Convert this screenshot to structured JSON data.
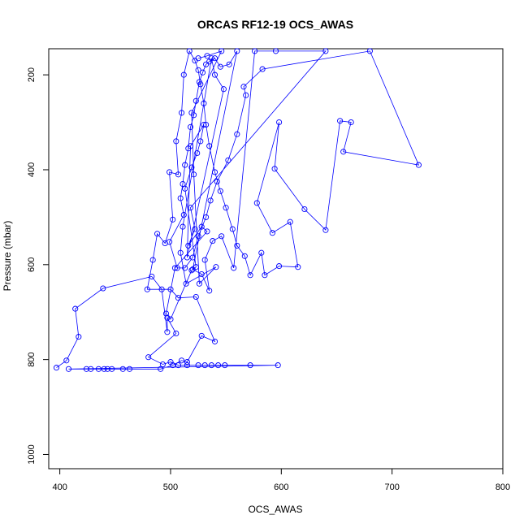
{
  "chart_data": {
    "type": "scatter",
    "title": "ORCAS RF12-19 OCS_AWAS",
    "xlabel": "OCS_AWAS",
    "ylabel": "Pressure (mbar)",
    "xlim": [
      390,
      800
    ],
    "ylim": [
      1030,
      145
    ],
    "y_reversed": true,
    "x_ticks": [
      400,
      500,
      600,
      700,
      800
    ],
    "y_ticks": [
      200,
      400,
      600,
      800,
      1000
    ],
    "grid": false,
    "legend": "none",
    "style": {
      "color": "#0000ff",
      "marker": "open-circle",
      "connect": "lines"
    },
    "series": [
      {
        "values": [
          [
            397,
            817
          ],
          [
            406,
            802
          ],
          [
            417,
            752
          ],
          [
            414,
            693
          ],
          [
            439,
            650
          ],
          [
            483,
            625
          ],
          [
            492,
            652
          ],
          [
            497,
            742
          ],
          [
            497,
            712
          ],
          [
            505,
            745
          ],
          [
            480,
            795
          ],
          [
            493,
            810
          ],
          [
            500,
            805
          ],
          [
            507,
            812
          ],
          [
            515,
            812
          ],
          [
            525,
            812
          ],
          [
            531,
            812
          ],
          [
            537,
            812
          ],
          [
            543,
            812
          ],
          [
            549,
            812
          ],
          [
            572,
            812
          ],
          [
            597,
            812
          ],
          [
            408,
            820
          ],
          [
            424,
            820
          ],
          [
            428,
            820
          ],
          [
            435,
            820
          ],
          [
            440,
            820
          ],
          [
            443,
            820
          ],
          [
            447,
            820
          ],
          [
            457,
            820
          ],
          [
            463,
            820
          ],
          [
            491,
            820
          ],
          [
            502,
            812
          ],
          [
            510,
            802
          ],
          [
            515,
            805
          ],
          [
            528,
            750
          ],
          [
            540,
            762
          ],
          [
            523,
            668
          ],
          [
            507,
            670
          ],
          [
            500,
            652
          ],
          [
            479,
            652
          ],
          [
            484,
            590
          ],
          [
            488,
            535
          ],
          [
            495,
            555
          ],
          [
            502,
            505
          ],
          [
            499,
            405
          ],
          [
            507,
            410
          ],
          [
            505,
            340
          ],
          [
            510,
            280
          ],
          [
            512,
            200
          ],
          [
            517,
            150
          ],
          [
            522,
            170
          ],
          [
            525,
            190
          ],
          [
            527,
            220
          ],
          [
            530,
            260
          ],
          [
            532,
            305
          ],
          [
            535,
            350
          ],
          [
            540,
            405
          ],
          [
            545,
            445
          ],
          [
            550,
            480
          ],
          [
            556,
            525
          ],
          [
            560,
            560
          ],
          [
            567,
            582
          ],
          [
            572,
            622
          ],
          [
            582,
            575
          ],
          [
            585,
            622
          ],
          [
            598,
            603
          ],
          [
            615,
            605
          ],
          [
            608,
            510
          ],
          [
            592,
            533
          ],
          [
            578,
            470
          ],
          [
            598,
            300
          ],
          [
            594,
            398
          ],
          [
            621,
            483
          ],
          [
            640,
            527
          ],
          [
            653,
            297
          ],
          [
            663,
            300
          ],
          [
            656,
            362
          ],
          [
            724,
            390
          ],
          [
            680,
            150
          ],
          [
            583,
            188
          ],
          [
            566,
            225
          ],
          [
            568,
            243
          ],
          [
            560,
            325
          ],
          [
            552,
            380
          ],
          [
            542,
            425
          ],
          [
            536,
            465
          ],
          [
            532,
            500
          ],
          [
            525,
            540
          ],
          [
            520,
            585
          ],
          [
            513,
            607
          ],
          [
            506,
            607
          ],
          [
            499,
            552
          ],
          [
            512,
            495
          ],
          [
            509,
            460
          ],
          [
            511,
            430
          ],
          [
            513,
            390
          ],
          [
            516,
            355
          ],
          [
            518,
            310
          ],
          [
            521,
            285
          ],
          [
            523,
            255
          ],
          [
            526,
            215
          ],
          [
            529,
            195
          ],
          [
            532,
            178
          ],
          [
            535,
            172
          ],
          [
            540,
            165
          ],
          [
            545,
            183
          ],
          [
            553,
            178
          ],
          [
            560,
            150
          ],
          [
            520,
            610
          ],
          [
            528,
            620
          ],
          [
            535,
            655
          ],
          [
            531,
            590
          ],
          [
            538,
            550
          ],
          [
            546,
            540
          ],
          [
            557,
            607
          ],
          [
            576,
            150
          ],
          [
            595,
            150
          ],
          [
            640,
            150
          ],
          [
            518,
            480
          ],
          [
            522,
            525
          ],
          [
            516,
            560
          ],
          [
            528,
            520
          ],
          [
            533,
            530
          ],
          [
            504,
            607
          ],
          [
            496,
            703
          ],
          [
            500,
            715
          ],
          [
            519,
            612
          ],
          [
            523,
            605
          ],
          [
            513,
            440
          ],
          [
            519,
            395
          ],
          [
            524,
            365
          ],
          [
            527,
            340
          ],
          [
            530,
            305
          ],
          [
            518,
            350
          ],
          [
            515,
            585
          ],
          [
            548,
            230
          ],
          [
            540,
            200
          ],
          [
            537,
            165
          ],
          [
            511,
            520
          ],
          [
            509,
            575
          ],
          [
            514,
            640
          ],
          [
            541,
            605
          ],
          [
            526,
            640
          ],
          [
            521,
            410
          ],
          [
            519,
            280
          ],
          [
            546,
            150
          ],
          [
            533,
            160
          ],
          [
            525,
            165
          ]
        ]
      }
    ]
  }
}
